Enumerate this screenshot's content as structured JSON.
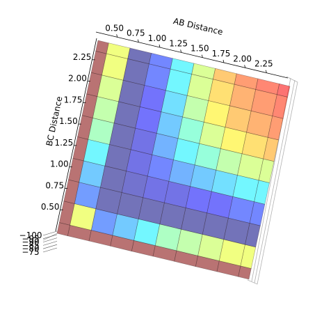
{
  "chart_data": {
    "type": "surface",
    "xlabel": "AB Distance",
    "ylabel": "BC Distance",
    "colormap": "jet",
    "x": [
      0.25,
      0.5,
      0.75,
      1.0,
      1.25,
      1.5,
      1.75,
      2.0,
      2.25,
      2.5
    ],
    "y": [
      0.25,
      0.5,
      0.75,
      1.0,
      1.25,
      1.5,
      1.75,
      2.0,
      2.25,
      2.5
    ],
    "z": [
      [
        -75,
        -75,
        -75,
        -75,
        -75,
        -75,
        -75,
        -75,
        -75,
        -75
      ],
      [
        -75,
        -85,
        -95,
        -93,
        -91,
        -88,
        -87,
        -86,
        -85,
        -85
      ],
      [
        -75,
        -95,
        -100,
        -100,
        -100,
        -100,
        -100,
        -100,
        -100,
        -100
      ],
      [
        -75,
        -93,
        -100,
        -99,
        -98,
        -98,
        -97,
        -97,
        -96,
        -96
      ],
      [
        -75,
        -91,
        -100,
        -98,
        -96,
        -94,
        -93,
        -92,
        -91,
        -91
      ],
      [
        -75,
        -88,
        -100,
        -98,
        -94,
        -91,
        -89,
        -87,
        -86,
        -86
      ],
      [
        -75,
        -87,
        -100,
        -97,
        -93,
        -89,
        -86,
        -84,
        -83,
        -82
      ],
      [
        -75,
        -86,
        -100,
        -97,
        -92,
        -87,
        -84,
        -82,
        -81,
        -80
      ],
      [
        -75,
        -85,
        -100,
        -96,
        -91,
        -86,
        -83,
        -81,
        -80,
        -79
      ],
      [
        -75,
        -85,
        -100,
        -96,
        -91,
        -86,
        -82,
        -80,
        -79,
        -78
      ]
    ],
    "xlim": [
      0.25,
      2.5
    ],
    "ylim": [
      0.25,
      2.5
    ],
    "zlim": [
      -100,
      -75
    ],
    "xticks": [
      {
        "value": 0.5,
        "label": "0.50"
      },
      {
        "value": 0.75,
        "label": "0.75"
      },
      {
        "value": 1.0,
        "label": "1.00"
      },
      {
        "value": 1.25,
        "label": "1.25"
      },
      {
        "value": 1.5,
        "label": "1.50"
      },
      {
        "value": 1.75,
        "label": "1.75"
      },
      {
        "value": 2.0,
        "label": "2.00"
      },
      {
        "value": 2.25,
        "label": "2.25"
      }
    ],
    "yticks": [
      {
        "value": 0.5,
        "label": "0.50"
      },
      {
        "value": 0.75,
        "label": "0.75"
      },
      {
        "value": 1.0,
        "label": "1.00"
      },
      {
        "value": 1.25,
        "label": "1.25"
      },
      {
        "value": 1.5,
        "label": "1.50"
      },
      {
        "value": 1.75,
        "label": "1.75"
      },
      {
        "value": 2.0,
        "label": "2.00"
      },
      {
        "value": 2.25,
        "label": "2.25"
      }
    ],
    "zticks": [
      {
        "value": -100,
        "label": "−100"
      },
      {
        "value": -95,
        "label": "−95"
      },
      {
        "value": -90,
        "label": "−90"
      },
      {
        "value": -85,
        "label": "−85"
      },
      {
        "value": -80,
        "label": "−80"
      },
      {
        "value": -75,
        "label": "−75"
      }
    ]
  }
}
